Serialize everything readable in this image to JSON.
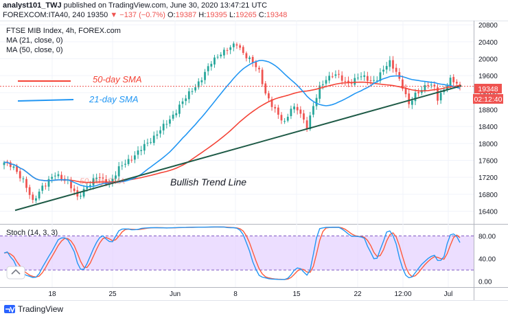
{
  "header": {
    "author": "analyst101_TWJ",
    "published_text": "published on TradingView.com, June 30, 2020 13:47:21 UTC",
    "symbol_line": "FOREXCOM:ITA40, 240",
    "last": "19350",
    "change": "▼ −137 (−0.7%)",
    "o_label": "O:",
    "o": "19387",
    "h_label": "H:",
    "h": "19395",
    "l_label": "L:",
    "l": "19265",
    "c_label": "C:",
    "c": "19348"
  },
  "legend": {
    "title": "FTSE MIB Index, 4h, FOREX.com",
    "ma1": "MA (21, close, 0)",
    "ma2": "MA (50, close, 0)"
  },
  "annotations": {
    "sma50_label": "50-day SMA",
    "sma21_label": "21-day SMA",
    "sma50_faded": "50-day SMA",
    "trend_label": "Bullish Trend Line"
  },
  "price_tag": {
    "value": "19348",
    "timer": "02:12:40"
  },
  "stoch": {
    "label": "Stoch (14, 3, 3)"
  },
  "footer": {
    "brand": "TradingView"
  },
  "colors": {
    "up": "#26a69a",
    "down": "#ef5350",
    "ma21": "#2196f3",
    "ma50": "#f44336",
    "trend": "#1e5a46",
    "stoch_k": "#2196f3",
    "stoch_d": "#ff5a3a",
    "stoch_band": "#e6d3ff"
  },
  "chart_data": {
    "type": "candlestick",
    "price_axis": {
      "ticks": [
        16400,
        16800,
        17200,
        17600,
        18000,
        18400,
        18800,
        19200,
        19600,
        20000,
        20400,
        20800
      ],
      "range": [
        16100,
        20900
      ]
    },
    "x_axis": {
      "tick_labels": [
        "18",
        "25",
        "Jun",
        "8",
        "15",
        "22",
        "12:00",
        "Jul"
      ]
    },
    "stoch_axis": {
      "ticks": [
        "80.00",
        "40.00",
        "0.00"
      ],
      "range": [
        -10,
        100
      ],
      "bands": [
        20,
        80
      ]
    },
    "anchors": [
      [
        0,
        17550
      ],
      [
        3,
        17420
      ],
      [
        6,
        17150
      ],
      [
        9,
        16600
      ],
      [
        12,
        17000
      ],
      [
        16,
        17250
      ],
      [
        20,
        17120
      ],
      [
        23,
        16700
      ],
      [
        26,
        17000
      ],
      [
        29,
        17200
      ],
      [
        33,
        17050
      ],
      [
        36,
        17400
      ],
      [
        39,
        17600
      ],
      [
        42,
        17800
      ],
      [
        45,
        18000
      ],
      [
        48,
        18250
      ],
      [
        52,
        18550
      ],
      [
        55,
        18900
      ],
      [
        59,
        19250
      ],
      [
        62,
        19550
      ],
      [
        65,
        19900
      ],
      [
        68,
        20150
      ],
      [
        71,
        20250
      ],
      [
        73,
        20350
      ],
      [
        75,
        20150
      ],
      [
        78,
        19900
      ],
      [
        80,
        19700
      ],
      [
        82,
        19200
      ],
      [
        84,
        18900
      ],
      [
        86,
        18650
      ],
      [
        88,
        18500
      ],
      [
        90,
        18850
      ],
      [
        92,
        18800
      ],
      [
        95,
        18400
      ],
      [
        97,
        18900
      ],
      [
        99,
        19300
      ],
      [
        101,
        19500
      ],
      [
        103,
        19650
      ],
      [
        105,
        19600
      ],
      [
        107,
        19400
      ],
      [
        109,
        19450
      ],
      [
        111,
        19600
      ],
      [
        113,
        19550
      ],
      [
        115,
        19450
      ],
      [
        117,
        19550
      ],
      [
        119,
        19750
      ],
      [
        121,
        19900
      ],
      [
        123,
        19700
      ],
      [
        125,
        19350
      ],
      [
        127,
        18900
      ],
      [
        129,
        19150
      ],
      [
        131,
        19300
      ],
      [
        133,
        19400
      ],
      [
        135,
        19300
      ],
      [
        136,
        19050
      ],
      [
        138,
        19300
      ],
      [
        140,
        19500
      ],
      [
        142,
        19400
      ],
      [
        143,
        19350
      ]
    ],
    "series": [
      {
        "name": "MA (21, close, 0)",
        "type": "line"
      },
      {
        "name": "MA (50, close, 0)",
        "type": "line"
      },
      {
        "type": "trend_line",
        "from": [
          0,
          16420
        ],
        "to": [
          143,
          19360
        ]
      }
    ]
  }
}
